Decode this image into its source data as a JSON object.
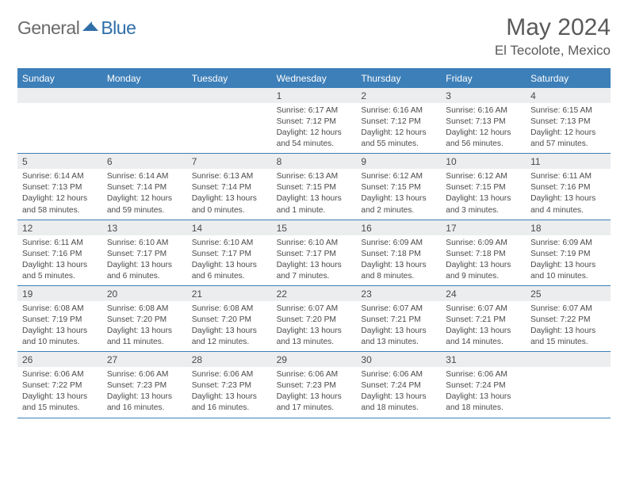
{
  "logo": {
    "general": "General",
    "blue": "Blue"
  },
  "title": "May 2024",
  "location": "El Tecolote, Mexico",
  "colors": {
    "header_bg": "#3d7fb8",
    "daynum_bg": "#ebedef",
    "text": "#4a4a4a",
    "logo_blue": "#2f6fa8"
  },
  "day_names": [
    "Sunday",
    "Monday",
    "Tuesday",
    "Wednesday",
    "Thursday",
    "Friday",
    "Saturday"
  ],
  "weeks": [
    [
      null,
      null,
      null,
      {
        "n": "1",
        "sr": "Sunrise: 6:17 AM",
        "ss": "Sunset: 7:12 PM",
        "dl": "Daylight: 12 hours and 54 minutes."
      },
      {
        "n": "2",
        "sr": "Sunrise: 6:16 AM",
        "ss": "Sunset: 7:12 PM",
        "dl": "Daylight: 12 hours and 55 minutes."
      },
      {
        "n": "3",
        "sr": "Sunrise: 6:16 AM",
        "ss": "Sunset: 7:13 PM",
        "dl": "Daylight: 12 hours and 56 minutes."
      },
      {
        "n": "4",
        "sr": "Sunrise: 6:15 AM",
        "ss": "Sunset: 7:13 PM",
        "dl": "Daylight: 12 hours and 57 minutes."
      }
    ],
    [
      {
        "n": "5",
        "sr": "Sunrise: 6:14 AM",
        "ss": "Sunset: 7:13 PM",
        "dl": "Daylight: 12 hours and 58 minutes."
      },
      {
        "n": "6",
        "sr": "Sunrise: 6:14 AM",
        "ss": "Sunset: 7:14 PM",
        "dl": "Daylight: 12 hours and 59 minutes."
      },
      {
        "n": "7",
        "sr": "Sunrise: 6:13 AM",
        "ss": "Sunset: 7:14 PM",
        "dl": "Daylight: 13 hours and 0 minutes."
      },
      {
        "n": "8",
        "sr": "Sunrise: 6:13 AM",
        "ss": "Sunset: 7:15 PM",
        "dl": "Daylight: 13 hours and 1 minute."
      },
      {
        "n": "9",
        "sr": "Sunrise: 6:12 AM",
        "ss": "Sunset: 7:15 PM",
        "dl": "Daylight: 13 hours and 2 minutes."
      },
      {
        "n": "10",
        "sr": "Sunrise: 6:12 AM",
        "ss": "Sunset: 7:15 PM",
        "dl": "Daylight: 13 hours and 3 minutes."
      },
      {
        "n": "11",
        "sr": "Sunrise: 6:11 AM",
        "ss": "Sunset: 7:16 PM",
        "dl": "Daylight: 13 hours and 4 minutes."
      }
    ],
    [
      {
        "n": "12",
        "sr": "Sunrise: 6:11 AM",
        "ss": "Sunset: 7:16 PM",
        "dl": "Daylight: 13 hours and 5 minutes."
      },
      {
        "n": "13",
        "sr": "Sunrise: 6:10 AM",
        "ss": "Sunset: 7:17 PM",
        "dl": "Daylight: 13 hours and 6 minutes."
      },
      {
        "n": "14",
        "sr": "Sunrise: 6:10 AM",
        "ss": "Sunset: 7:17 PM",
        "dl": "Daylight: 13 hours and 6 minutes."
      },
      {
        "n": "15",
        "sr": "Sunrise: 6:10 AM",
        "ss": "Sunset: 7:17 PM",
        "dl": "Daylight: 13 hours and 7 minutes."
      },
      {
        "n": "16",
        "sr": "Sunrise: 6:09 AM",
        "ss": "Sunset: 7:18 PM",
        "dl": "Daylight: 13 hours and 8 minutes."
      },
      {
        "n": "17",
        "sr": "Sunrise: 6:09 AM",
        "ss": "Sunset: 7:18 PM",
        "dl": "Daylight: 13 hours and 9 minutes."
      },
      {
        "n": "18",
        "sr": "Sunrise: 6:09 AM",
        "ss": "Sunset: 7:19 PM",
        "dl": "Daylight: 13 hours and 10 minutes."
      }
    ],
    [
      {
        "n": "19",
        "sr": "Sunrise: 6:08 AM",
        "ss": "Sunset: 7:19 PM",
        "dl": "Daylight: 13 hours and 10 minutes."
      },
      {
        "n": "20",
        "sr": "Sunrise: 6:08 AM",
        "ss": "Sunset: 7:20 PM",
        "dl": "Daylight: 13 hours and 11 minutes."
      },
      {
        "n": "21",
        "sr": "Sunrise: 6:08 AM",
        "ss": "Sunset: 7:20 PM",
        "dl": "Daylight: 13 hours and 12 minutes."
      },
      {
        "n": "22",
        "sr": "Sunrise: 6:07 AM",
        "ss": "Sunset: 7:20 PM",
        "dl": "Daylight: 13 hours and 13 minutes."
      },
      {
        "n": "23",
        "sr": "Sunrise: 6:07 AM",
        "ss": "Sunset: 7:21 PM",
        "dl": "Daylight: 13 hours and 13 minutes."
      },
      {
        "n": "24",
        "sr": "Sunrise: 6:07 AM",
        "ss": "Sunset: 7:21 PM",
        "dl": "Daylight: 13 hours and 14 minutes."
      },
      {
        "n": "25",
        "sr": "Sunrise: 6:07 AM",
        "ss": "Sunset: 7:22 PM",
        "dl": "Daylight: 13 hours and 15 minutes."
      }
    ],
    [
      {
        "n": "26",
        "sr": "Sunrise: 6:06 AM",
        "ss": "Sunset: 7:22 PM",
        "dl": "Daylight: 13 hours and 15 minutes."
      },
      {
        "n": "27",
        "sr": "Sunrise: 6:06 AM",
        "ss": "Sunset: 7:23 PM",
        "dl": "Daylight: 13 hours and 16 minutes."
      },
      {
        "n": "28",
        "sr": "Sunrise: 6:06 AM",
        "ss": "Sunset: 7:23 PM",
        "dl": "Daylight: 13 hours and 16 minutes."
      },
      {
        "n": "29",
        "sr": "Sunrise: 6:06 AM",
        "ss": "Sunset: 7:23 PM",
        "dl": "Daylight: 13 hours and 17 minutes."
      },
      {
        "n": "30",
        "sr": "Sunrise: 6:06 AM",
        "ss": "Sunset: 7:24 PM",
        "dl": "Daylight: 13 hours and 18 minutes."
      },
      {
        "n": "31",
        "sr": "Sunrise: 6:06 AM",
        "ss": "Sunset: 7:24 PM",
        "dl": "Daylight: 13 hours and 18 minutes."
      },
      null
    ]
  ]
}
